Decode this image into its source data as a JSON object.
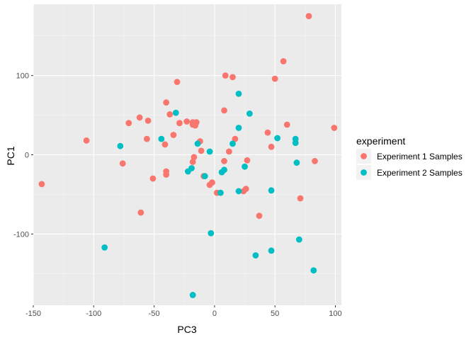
{
  "chart_data": {
    "type": "scatter",
    "xlabel": "PC3",
    "ylabel": "PC1",
    "xlim": [
      -150,
      105
    ],
    "ylim": [
      -190,
      190
    ],
    "xticks": [
      -150,
      -100,
      -50,
      0,
      50,
      100
    ],
    "yticks": [
      -100,
      0,
      100
    ],
    "xtick_labels": [
      "-150",
      "-100",
      "-50",
      "0",
      "50",
      "100"
    ],
    "ytick_labels": [
      "-100",
      "0",
      "100"
    ],
    "grid": true,
    "background": "#ebebeb",
    "legend": {
      "title": "experiment",
      "position": "right"
    },
    "series": [
      {
        "name": "Experiment 1 Samples",
        "color": "#f8766d",
        "points": [
          [
            78,
            175
          ],
          [
            57,
            118
          ],
          [
            50,
            96
          ],
          [
            9,
            100
          ],
          [
            15,
            98
          ],
          [
            -31,
            92
          ],
          [
            8,
            56
          ],
          [
            60,
            38
          ],
          [
            44,
            28
          ],
          [
            -40,
            66
          ],
          [
            -37,
            51
          ],
          [
            -62,
            47
          ],
          [
            -55,
            43
          ],
          [
            -71,
            40
          ],
          [
            -29,
            40
          ],
          [
            -23,
            42
          ],
          [
            -18,
            41
          ],
          [
            -16,
            37
          ],
          [
            -15,
            41
          ],
          [
            -34,
            25
          ],
          [
            -12,
            17
          ],
          [
            17,
            20
          ],
          [
            -56,
            20
          ],
          [
            -106,
            18
          ],
          [
            -41,
            13
          ],
          [
            -11,
            5
          ],
          [
            12,
            4
          ],
          [
            47,
            10
          ],
          [
            -17,
            -3
          ],
          [
            -18,
            -9
          ],
          [
            8,
            -8
          ],
          [
            27,
            -7
          ],
          [
            83,
            -8
          ],
          [
            99,
            34
          ],
          [
            -76,
            -11
          ],
          [
            -40,
            -21
          ],
          [
            -40,
            -25
          ],
          [
            -9,
            -27
          ],
          [
            -51,
            -30
          ],
          [
            -4,
            -38
          ],
          [
            -2,
            -35
          ],
          [
            2,
            -48
          ],
          [
            26,
            -43
          ],
          [
            24,
            -46
          ],
          [
            -143,
            -37
          ],
          [
            71,
            -55
          ],
          [
            -61,
            -73
          ],
          [
            37,
            -77
          ],
          [
            -18,
            38
          ]
        ]
      },
      {
        "name": "Experiment 2 Samples",
        "color": "#00bfc4",
        "points": [
          [
            20,
            77
          ],
          [
            -32,
            53
          ],
          [
            29,
            52
          ],
          [
            20,
            34
          ],
          [
            -44,
            20
          ],
          [
            52,
            21
          ],
          [
            67,
            20
          ],
          [
            67,
            15
          ],
          [
            -14,
            14
          ],
          [
            15,
            14
          ],
          [
            -78,
            11
          ],
          [
            -4,
            4
          ],
          [
            68,
            -10
          ],
          [
            25,
            -15
          ],
          [
            -19,
            -17
          ],
          [
            -22,
            -21
          ],
          [
            8,
            -19
          ],
          [
            6,
            -22
          ],
          [
            -8,
            -27
          ],
          [
            5,
            -48
          ],
          [
            20,
            -46
          ],
          [
            47,
            -45
          ],
          [
            -3,
            -99
          ],
          [
            -91,
            -117
          ],
          [
            70,
            -107
          ],
          [
            47,
            -121
          ],
          [
            34,
            -127
          ],
          [
            82,
            -146
          ],
          [
            -18,
            -177
          ]
        ]
      }
    ]
  }
}
